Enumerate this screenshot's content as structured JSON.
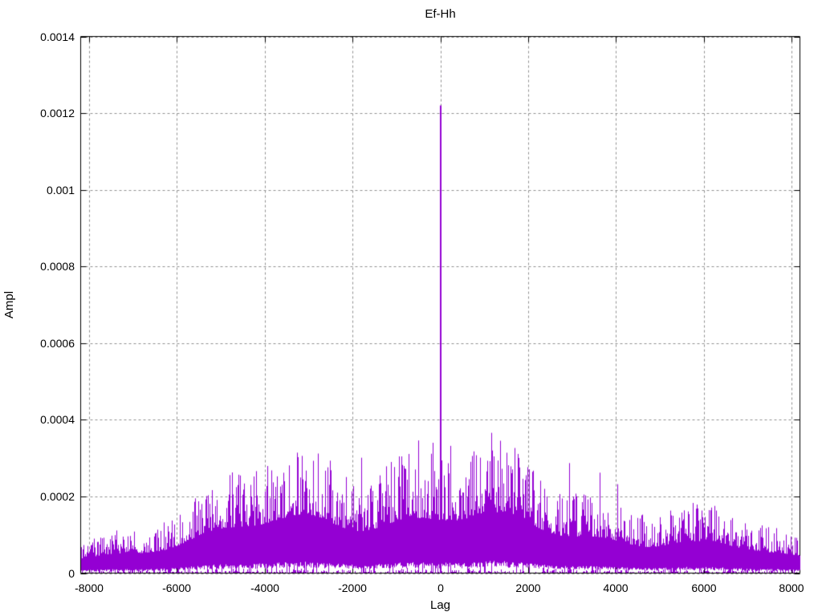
{
  "chart_data": {
    "type": "line",
    "plot_style": "dense impulse-like correlation noise",
    "title": "Ef-Hh",
    "xlabel": "Lag",
    "ylabel": "Ampl",
    "xlim": [
      -8192,
      8192
    ],
    "ylim": [
      0,
      0.0014
    ],
    "grid": true,
    "legend": "none",
    "xticks": [
      {
        "value": -8000,
        "label": "-8000"
      },
      {
        "value": -6000,
        "label": "-6000"
      },
      {
        "value": -4000,
        "label": "-4000"
      },
      {
        "value": -2000,
        "label": "-2000"
      },
      {
        "value": 0,
        "label": "0"
      },
      {
        "value": 2000,
        "label": "2000"
      },
      {
        "value": 4000,
        "label": "4000"
      },
      {
        "value": 6000,
        "label": "6000"
      },
      {
        "value": 8000,
        "label": "8000"
      }
    ],
    "yticks": [
      {
        "value": 0,
        "label": "0"
      },
      {
        "value": 0.0002,
        "label": "0.0002"
      },
      {
        "value": 0.0004,
        "label": "0.0004"
      },
      {
        "value": 0.0006,
        "label": "0.0006"
      },
      {
        "value": 0.0008,
        "label": "0.0008"
      },
      {
        "value": 0.001,
        "label": "0.001"
      },
      {
        "value": 0.0012,
        "label": "0.0012"
      },
      {
        "value": 0.0014,
        "label": "0.0014"
      }
    ],
    "series": [
      {
        "name": "Ef-Hh",
        "color": "#9400D3",
        "main_peak": {
          "lag": 0,
          "value": 0.00122
        },
        "notable_spikes": [
          {
            "lag": 1160,
            "value": 0.000366
          },
          {
            "lag": -500,
            "value": 0.000346
          },
          {
            "lag": -175,
            "value": 0.00034
          },
          {
            "lag": 230,
            "value": 0.000332
          },
          {
            "lag": -1800,
            "value": 0.000301
          },
          {
            "lag": -2890,
            "value": 0.000293
          },
          {
            "lag": 2940,
            "value": 0.000287
          },
          {
            "lag": -3440,
            "value": 0.000281
          },
          {
            "lag": 3630,
            "value": 0.000262
          },
          {
            "lag": 4040,
            "value": 0.000232
          }
        ],
        "noise_peak_envelope": [
          [
            0,
            0.00032
          ],
          [
            1000,
            0.00031
          ],
          [
            2000,
            0.00029
          ],
          [
            3000,
            0.00028
          ],
          [
            4000,
            0.00024
          ],
          [
            5000,
            0.0002
          ],
          [
            6000,
            0.00016
          ],
          [
            7000,
            0.00013
          ],
          [
            8192,
            9e-05
          ]
        ],
        "noise_floor": 0.0
      }
    ]
  },
  "colors": {
    "background": "#ffffff",
    "border": "#000000",
    "grid": "#909090",
    "text": "#000000",
    "series": "#9400D3"
  },
  "render_hints": {
    "seed": 9,
    "grid_dash": [
      3,
      3
    ]
  }
}
